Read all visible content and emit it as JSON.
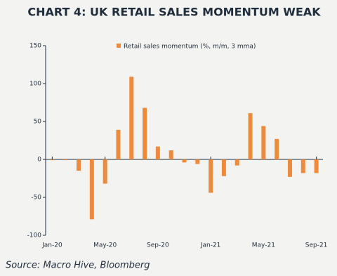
{
  "chart_data": {
    "type": "bar",
    "title": "CHART 4: UK RETAIL SALES MOMENTUM WEAK",
    "source": "Source: Macro Hive, Bloomberg",
    "categories": [
      "Jan-20",
      null,
      null,
      null,
      "May-20",
      null,
      null,
      null,
      "Sep-20",
      null,
      null,
      null,
      "Jan-21",
      null,
      null,
      null,
      "May-21",
      null,
      null,
      null,
      "Sep-21"
    ],
    "series": [
      {
        "name": "Retail sales momentum (%, m/m, 3 mma)",
        "color": "#ef8a3c",
        "values": [
          -1,
          -1,
          -15,
          -79,
          -32,
          39,
          109,
          68,
          17,
          12,
          -4,
          -6,
          -44,
          -22,
          -8,
          61,
          44,
          27,
          -23,
          -18,
          -18
        ]
      }
    ],
    "ylim": [
      -100,
      150
    ],
    "yticks": [
      -100,
      -50,
      0,
      50,
      100,
      150
    ],
    "legend": "top"
  }
}
